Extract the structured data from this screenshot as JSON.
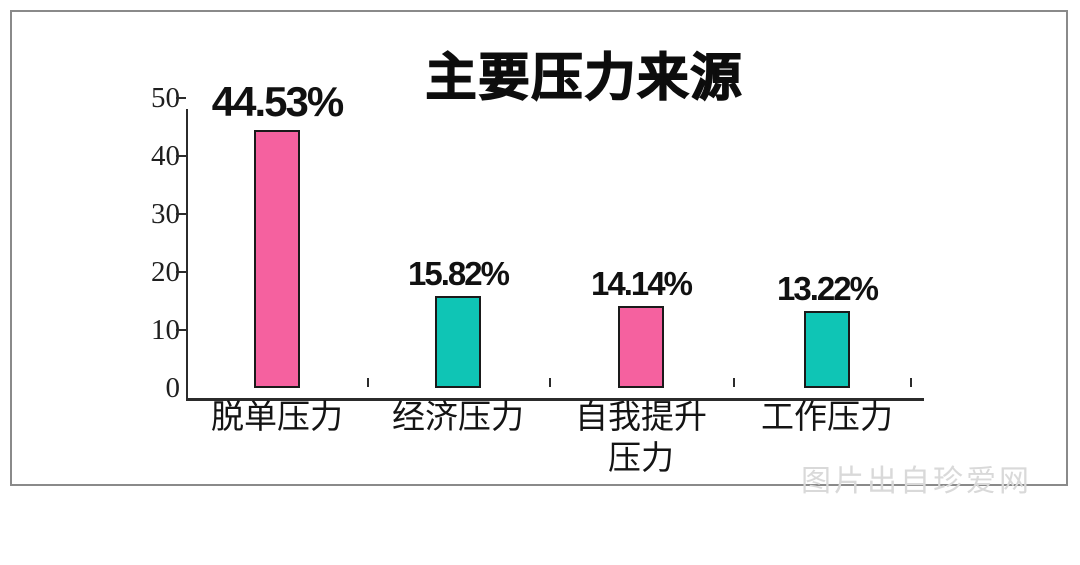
{
  "page": {
    "watermark": "图片出自珍爱网"
  },
  "chart_data": {
    "type": "bar",
    "title": "主要压力来源",
    "categories": [
      "脱单压力",
      "经济压力",
      "自我提升压力",
      "工作压力"
    ],
    "category_display": [
      "脱单压力",
      "经济压力",
      "自我提升\n压力",
      "工作压力"
    ],
    "values": [
      44.53,
      15.82,
      14.14,
      13.22
    ],
    "value_labels": [
      "44.53%",
      "15.82%",
      "14.14%",
      "13.22%"
    ],
    "bar_colors": [
      "#f5619f",
      "#0fc5b5",
      "#f5619f",
      "#0fc5b5"
    ],
    "y_ticks": [
      0,
      10,
      20,
      30,
      40,
      50
    ],
    "ylim": [
      0,
      50
    ],
    "xlabel": "",
    "ylabel": "",
    "grid": false,
    "legend": false
  },
  "colors": {
    "bar_pink": "#f5619f",
    "bar_teal": "#0fc5b5",
    "bar_outline": "#1a1a1a",
    "axis": "#2b2b2b",
    "card_border": "#8a8a8a",
    "title_text": "#0d0d0d",
    "watermark_text": "#d9d9d9"
  }
}
